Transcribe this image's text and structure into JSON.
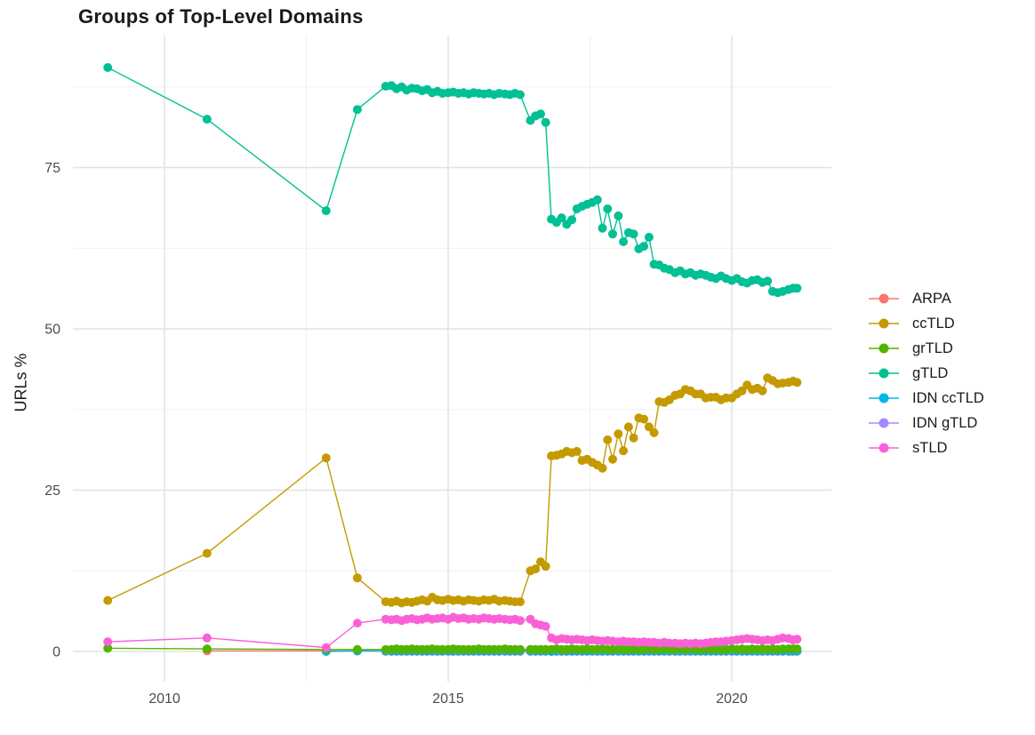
{
  "title": "Groups of Top-Level Domains",
  "chart_data": {
    "type": "line",
    "title": "Groups of Top-Level Domains",
    "xlabel": "",
    "ylabel": "URLs %",
    "xlim": [
      2008.4,
      2021.8
    ],
    "ylim": [
      -1.5,
      95
    ],
    "x_ticks": [
      2010,
      2015,
      2020
    ],
    "x_minor_ticks": [
      2012.5,
      2017.5
    ],
    "y_ticks": [
      0,
      25,
      50,
      75
    ],
    "y_minor_ticks": [
      12.5,
      37.5,
      62.5,
      87.5
    ],
    "grid": true,
    "legend_position": "right",
    "background_color": "#FFFFFF",
    "grid_major_color": "#E2E2E2",
    "grid_minor_color": "#F0F0F0",
    "tick_label_color": "#4D4D4D",
    "x": [
      2009.0,
      2010.75,
      2012.85,
      2013.4,
      2013.9,
      2014.0,
      2014.09,
      2014.18,
      2014.27,
      2014.36,
      2014.45,
      2014.54,
      2014.63,
      2014.72,
      2014.81,
      2014.9,
      2015.0,
      2015.09,
      2015.18,
      2015.27,
      2015.36,
      2015.45,
      2015.54,
      2015.63,
      2015.72,
      2015.81,
      2015.9,
      2016.0,
      2016.09,
      2016.18,
      2016.27,
      2016.45,
      2016.54,
      2016.63,
      2016.72,
      2016.82,
      2016.91,
      2017.0,
      2017.09,
      2017.18,
      2017.27,
      2017.36,
      2017.45,
      2017.54,
      2017.63,
      2017.72,
      2017.81,
      2017.9,
      2018.0,
      2018.09,
      2018.18,
      2018.27,
      2018.36,
      2018.45,
      2018.54,
      2018.63,
      2018.72,
      2018.81,
      2018.9,
      2019.0,
      2019.09,
      2019.18,
      2019.27,
      2019.36,
      2019.45,
      2019.54,
      2019.63,
      2019.72,
      2019.81,
      2019.9,
      2020.0,
      2020.09,
      2020.18,
      2020.27,
      2020.36,
      2020.45,
      2020.54,
      2020.63,
      2020.72,
      2020.81,
      2020.9,
      2021.0,
      2021.08,
      2021.15
    ],
    "series": [
      {
        "name": "ARPA",
        "color": "#F8766D",
        "values": [
          null,
          0.1,
          0.1,
          0.05,
          0.05,
          0.05,
          0.05,
          0.05,
          0.05,
          0.05,
          0.05,
          0.05,
          0.05,
          0.05,
          0.05,
          0.05,
          0.05,
          0.05,
          0.05,
          0.05,
          0.05,
          0.05,
          0.05,
          0.05,
          0.05,
          0.05,
          0.05,
          0.05,
          0.05,
          0.05,
          0.05,
          0.05,
          0.05,
          0.05,
          0.05,
          0.05,
          0.05,
          0.05,
          0.05,
          0.05,
          0.05,
          0.05,
          0.05,
          0.05,
          0.05,
          0.05,
          0.05,
          0.05,
          0.05,
          0.05,
          0.05,
          0.05,
          0.05,
          0.05,
          0.05,
          0.05,
          0.05,
          0.05,
          0.05,
          0.05,
          0.05,
          0.05,
          0.05,
          0.05,
          0.05,
          0.05,
          0.05,
          0.05,
          0.05,
          0.05,
          0.05,
          0.05,
          0.05,
          0.05,
          0.05,
          0.05,
          0.05,
          0.05,
          0.05,
          0.05,
          0.05,
          0.05,
          0.05,
          0.05
        ]
      },
      {
        "name": "ccTLD",
        "color": "#C49A00",
        "values": [
          7.9,
          15.2,
          30.0,
          11.4,
          7.7,
          7.6,
          7.8,
          7.5,
          7.7,
          7.6,
          7.8,
          8.0,
          7.8,
          8.4,
          8.0,
          7.9,
          8.1,
          7.9,
          8.0,
          7.8,
          8.0,
          7.9,
          7.8,
          8.0,
          7.9,
          8.1,
          7.8,
          7.9,
          7.8,
          7.7,
          7.7,
          12.5,
          12.8,
          13.9,
          13.2,
          30.3,
          30.4,
          30.6,
          31.0,
          30.8,
          31.0,
          29.6,
          29.8,
          29.3,
          28.9,
          28.4,
          32.8,
          29.8,
          33.7,
          31.1,
          34.8,
          33.1,
          36.2,
          36.0,
          34.8,
          33.9,
          38.7,
          38.6,
          39.0,
          39.7,
          39.9,
          40.6,
          40.4,
          39.9,
          39.9,
          39.3,
          39.4,
          39.4,
          39.0,
          39.3,
          39.3,
          39.9,
          40.4,
          41.3,
          40.6,
          40.8,
          40.4,
          42.4,
          42.0,
          41.5,
          41.6,
          41.7,
          41.9,
          41.7
        ]
      },
      {
        "name": "grTLD",
        "color": "#53B400",
        "values": [
          0.5,
          0.4,
          0.3,
          0.3,
          0.3,
          0.3,
          0.4,
          0.3,
          0.3,
          0.4,
          0.3,
          0.3,
          0.3,
          0.4,
          0.3,
          0.3,
          0.3,
          0.4,
          0.3,
          0.3,
          0.3,
          0.3,
          0.4,
          0.3,
          0.3,
          0.3,
          0.3,
          0.4,
          0.3,
          0.3,
          0.3,
          0.3,
          0.3,
          0.3,
          0.3,
          0.3,
          0.4,
          0.3,
          0.3,
          0.4,
          0.3,
          0.3,
          0.4,
          0.3,
          0.3,
          0.4,
          0.3,
          0.3,
          0.4,
          0.3,
          0.3,
          0.4,
          0.3,
          0.3,
          0.4,
          0.3,
          0.3,
          0.4,
          0.3,
          0.3,
          0.4,
          0.3,
          0.4,
          0.3,
          0.3,
          0.4,
          0.3,
          0.4,
          0.3,
          0.3,
          0.4,
          0.3,
          0.4,
          0.3,
          0.4,
          0.3,
          0.4,
          0.3,
          0.4,
          0.3,
          0.4,
          0.4,
          0.4,
          0.4
        ]
      },
      {
        "name": "gTLD",
        "color": "#00C094",
        "values": [
          90.5,
          82.5,
          68.3,
          84.0,
          87.6,
          87.7,
          87.2,
          87.5,
          87.0,
          87.3,
          87.2,
          86.9,
          87.1,
          86.6,
          86.8,
          86.5,
          86.6,
          86.7,
          86.5,
          86.6,
          86.4,
          86.6,
          86.5,
          86.4,
          86.5,
          86.3,
          86.5,
          86.4,
          86.3,
          86.5,
          86.3,
          82.3,
          83.0,
          83.3,
          82.0,
          67.0,
          66.5,
          67.2,
          66.2,
          66.9,
          68.6,
          69.0,
          69.3,
          69.6,
          70.0,
          65.6,
          68.6,
          64.7,
          67.5,
          63.5,
          64.9,
          64.7,
          62.4,
          62.8,
          64.2,
          60.0,
          59.9,
          59.4,
          59.2,
          58.7,
          59.0,
          58.5,
          58.7,
          58.3,
          58.5,
          58.3,
          58.0,
          57.8,
          58.2,
          57.8,
          57.5,
          57.8,
          57.3,
          57.1,
          57.5,
          57.6,
          57.2,
          57.4,
          55.8,
          55.6,
          55.8,
          56.1,
          56.3,
          56.3
        ]
      },
      {
        "name": "IDN ccTLD",
        "color": "#00B6EB",
        "values": [
          null,
          null,
          0.0,
          0.1,
          0.1,
          0.1,
          0.1,
          0.1,
          0.1,
          0.1,
          0.1,
          0.1,
          0.1,
          0.1,
          0.1,
          0.1,
          0.1,
          0.1,
          0.1,
          0.1,
          0.1,
          0.1,
          0.1,
          0.1,
          0.1,
          0.1,
          0.1,
          0.1,
          0.1,
          0.1,
          0.1,
          0.1,
          0.1,
          0.1,
          0.1,
          0.0,
          0.1,
          0.1,
          0.1,
          0.1,
          0.1,
          0.1,
          0.1,
          0.1,
          0.1,
          0.1,
          0.1,
          0.1,
          0.1,
          0.1,
          0.1,
          0.1,
          0.1,
          0.1,
          0.1,
          0.1,
          0.1,
          0.1,
          0.1,
          0.1,
          0.1,
          0.1,
          0.1,
          0.1,
          0.1,
          0.1,
          0.1,
          0.1,
          0.1,
          0.1,
          0.1,
          0.1,
          0.1,
          0.1,
          0.1,
          0.1,
          0.1,
          0.1,
          0.1,
          0.1,
          0.1,
          0.1,
          0.1,
          0.1
        ]
      },
      {
        "name": "IDN gTLD",
        "color": "#A58AFF",
        "values": [
          null,
          null,
          null,
          null,
          0.0,
          0.0,
          0.0,
          0.0,
          0.0,
          0.0,
          0.0,
          0.0,
          0.0,
          0.0,
          0.0,
          0.0,
          0.0,
          0.0,
          0.0,
          0.0,
          0.0,
          0.0,
          0.0,
          0.0,
          0.0,
          0.0,
          0.0,
          0.0,
          0.0,
          0.0,
          0.0,
          0.0,
          0.0,
          0.0,
          0.0,
          0.0,
          0.0,
          0.0,
          0.0,
          0.0,
          0.0,
          0.0,
          0.0,
          0.0,
          0.0,
          0.0,
          0.0,
          0.0,
          0.0,
          0.0,
          0.0,
          0.0,
          0.0,
          0.0,
          0.0,
          0.0,
          0.0,
          0.0,
          0.0,
          0.0,
          0.0,
          0.0,
          0.0,
          0.0,
          0.0,
          0.0,
          0.0,
          0.0,
          0.0,
          0.0,
          0.0,
          0.0,
          0.0,
          0.0,
          0.0,
          0.0,
          0.0,
          0.0,
          0.0,
          0.0,
          0.0,
          0.0,
          0.0,
          0.0
        ]
      },
      {
        "name": "sTLD",
        "color": "#FB61D7",
        "values": [
          1.5,
          2.1,
          0.6,
          4.4,
          5.0,
          4.9,
          5.0,
          4.8,
          5.0,
          5.1,
          4.9,
          5.0,
          5.2,
          5.0,
          5.1,
          5.2,
          5.0,
          5.3,
          5.1,
          5.2,
          5.0,
          5.1,
          5.0,
          5.2,
          5.1,
          5.0,
          5.1,
          5.0,
          4.9,
          5.0,
          4.8,
          5.0,
          4.3,
          4.1,
          3.9,
          2.1,
          1.8,
          2.0,
          1.9,
          1.8,
          1.9,
          1.8,
          1.7,
          1.8,
          1.7,
          1.6,
          1.7,
          1.6,
          1.5,
          1.6,
          1.5,
          1.5,
          1.4,
          1.5,
          1.4,
          1.4,
          1.3,
          1.4,
          1.3,
          1.3,
          1.2,
          1.3,
          1.2,
          1.3,
          1.2,
          1.3,
          1.4,
          1.5,
          1.5,
          1.6,
          1.7,
          1.8,
          1.9,
          2.0,
          1.9,
          1.8,
          1.7,
          1.8,
          1.7,
          1.9,
          2.1,
          2.0,
          1.8,
          1.9
        ]
      }
    ]
  }
}
